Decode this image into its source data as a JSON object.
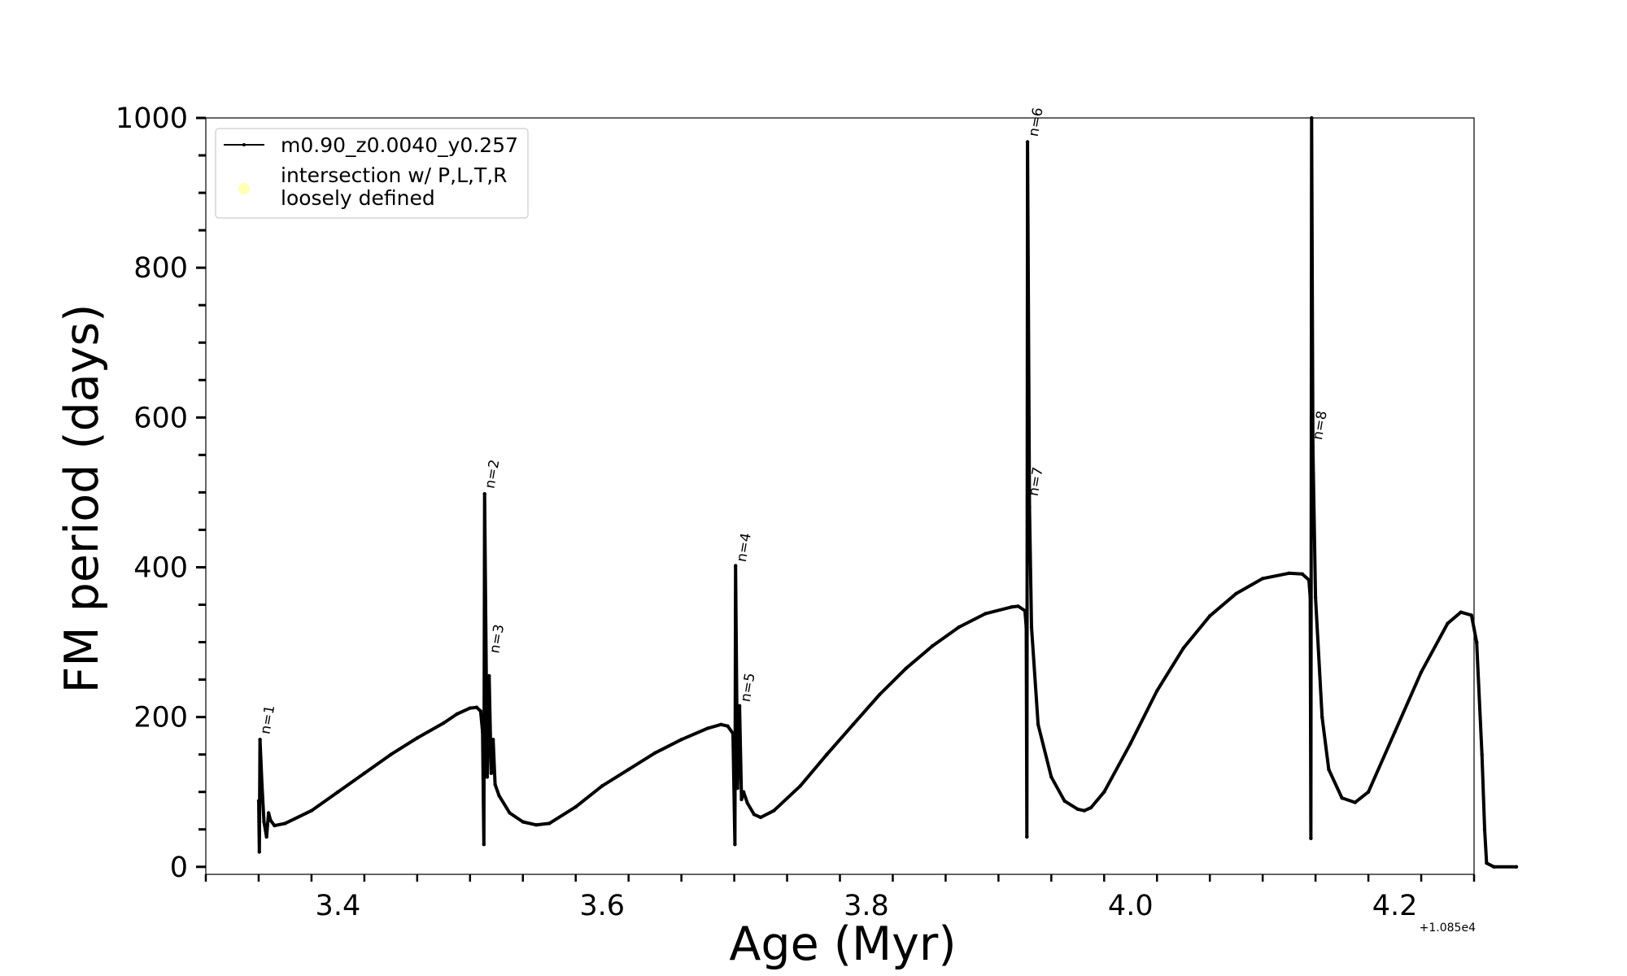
{
  "chart_data": {
    "type": "line",
    "xlabel": "Age (Myr)",
    "ylabel": "FM period (days)",
    "x_offset_label": "+1.085e4",
    "xlim": [
      3.3,
      4.26
    ],
    "ylim": [
      -10,
      1000
    ],
    "xticks": [
      3.4,
      3.6,
      3.8,
      4.0,
      4.2
    ],
    "xtick_labels": [
      "3.4",
      "3.6",
      "3.8",
      "4.0",
      "4.2"
    ],
    "yticks": [
      0,
      200,
      400,
      600,
      800,
      1000
    ],
    "ytick_labels": [
      "0",
      "200",
      "400",
      "600",
      "800",
      "1000"
    ],
    "legend": {
      "placement": "upper-left",
      "entries": [
        {
          "label": "m0.90_z0.0040_y0.257",
          "marker": "line-dot",
          "color": "#000000"
        },
        {
          "label": "intersection w/ P,L,T,R",
          "label2": "loosely defined",
          "marker": "circle",
          "color": "#ffffa0"
        }
      ]
    },
    "series": [
      {
        "name": "m0.90_z0.0040_y0.257",
        "color": "#000000",
        "points": [
          [
            3.34,
            88
          ],
          [
            3.3405,
            20
          ],
          [
            3.341,
            170
          ],
          [
            3.3425,
            110
          ],
          [
            3.344,
            60
          ],
          [
            3.346,
            40
          ],
          [
            3.3475,
            72
          ],
          [
            3.349,
            62
          ],
          [
            3.352,
            55
          ],
          [
            3.36,
            58
          ],
          [
            3.38,
            75
          ],
          [
            3.4,
            100
          ],
          [
            3.42,
            125
          ],
          [
            3.44,
            150
          ],
          [
            3.46,
            172
          ],
          [
            3.48,
            192
          ],
          [
            3.49,
            204
          ],
          [
            3.5,
            212
          ],
          [
            3.505,
            213
          ],
          [
            3.508,
            208
          ],
          [
            3.5095,
            180
          ],
          [
            3.5105,
            30
          ],
          [
            3.511,
            498
          ],
          [
            3.513,
            120
          ],
          [
            3.5145,
            255
          ],
          [
            3.516,
            125
          ],
          [
            3.5175,
            170
          ],
          [
            3.519,
            110
          ],
          [
            3.522,
            95
          ],
          [
            3.53,
            72
          ],
          [
            3.54,
            60
          ],
          [
            3.55,
            56
          ],
          [
            3.56,
            58
          ],
          [
            3.58,
            80
          ],
          [
            3.6,
            108
          ],
          [
            3.62,
            130
          ],
          [
            3.64,
            152
          ],
          [
            3.66,
            170
          ],
          [
            3.68,
            185
          ],
          [
            3.69,
            190
          ],
          [
            3.695,
            188
          ],
          [
            3.699,
            178
          ],
          [
            3.7005,
            30
          ],
          [
            3.701,
            402
          ],
          [
            3.7025,
            105
          ],
          [
            3.704,
            215
          ],
          [
            3.7055,
            90
          ],
          [
            3.707,
            100
          ],
          [
            3.71,
            85
          ],
          [
            3.715,
            70
          ],
          [
            3.72,
            66
          ],
          [
            3.73,
            75
          ],
          [
            3.75,
            108
          ],
          [
            3.77,
            150
          ],
          [
            3.79,
            190
          ],
          [
            3.81,
            230
          ],
          [
            3.83,
            265
          ],
          [
            3.85,
            295
          ],
          [
            3.87,
            320
          ],
          [
            3.89,
            338
          ],
          [
            3.91,
            347
          ],
          [
            3.915,
            348
          ],
          [
            3.92,
            342
          ],
          [
            3.921,
            320
          ],
          [
            3.9215,
            40
          ],
          [
            3.922,
            968
          ],
          [
            3.9235,
            480
          ],
          [
            3.925,
            320
          ],
          [
            3.93,
            190
          ],
          [
            3.94,
            120
          ],
          [
            3.95,
            88
          ],
          [
            3.96,
            77
          ],
          [
            3.965,
            75
          ],
          [
            3.97,
            79
          ],
          [
            3.98,
            100
          ],
          [
            4.0,
            165
          ],
          [
            4.02,
            235
          ],
          [
            4.04,
            292
          ],
          [
            4.06,
            335
          ],
          [
            4.08,
            365
          ],
          [
            4.1,
            385
          ],
          [
            4.12,
            392
          ],
          [
            4.13,
            391
          ],
          [
            4.135,
            383
          ],
          [
            4.136,
            360
          ],
          [
            4.1365,
            38
          ],
          [
            4.137,
            1000
          ],
          [
            4.138,
            560
          ],
          [
            4.14,
            360
          ],
          [
            4.145,
            200
          ],
          [
            4.15,
            130
          ],
          [
            4.16,
            92
          ],
          [
            4.17,
            86
          ],
          [
            4.18,
            100
          ],
          [
            4.2,
            180
          ],
          [
            4.22,
            260
          ],
          [
            4.24,
            325
          ],
          [
            4.25,
            340
          ],
          [
            4.258,
            336
          ],
          [
            4.262,
            300
          ],
          [
            4.266,
            150
          ],
          [
            4.268,
            50
          ],
          [
            4.2695,
            5
          ],
          [
            4.275,
            0
          ],
          [
            4.292,
            0
          ]
        ]
      }
    ],
    "annotations": [
      {
        "text": "n=1",
        "x": 3.342,
        "y": 172
      },
      {
        "text": "n=2",
        "x": 3.512,
        "y": 500
      },
      {
        "text": "n=3",
        "x": 3.5155,
        "y": 280
      },
      {
        "text": "n=4",
        "x": 3.7025,
        "y": 402
      },
      {
        "text": "n=5",
        "x": 3.7055,
        "y": 215
      },
      {
        "text": "n=6",
        "x": 3.9235,
        "y": 970
      },
      {
        "text": "n=7",
        "x": 3.9235,
        "y": 490
      },
      {
        "text": "n=8",
        "x": 4.1385,
        "y": 565
      }
    ]
  }
}
